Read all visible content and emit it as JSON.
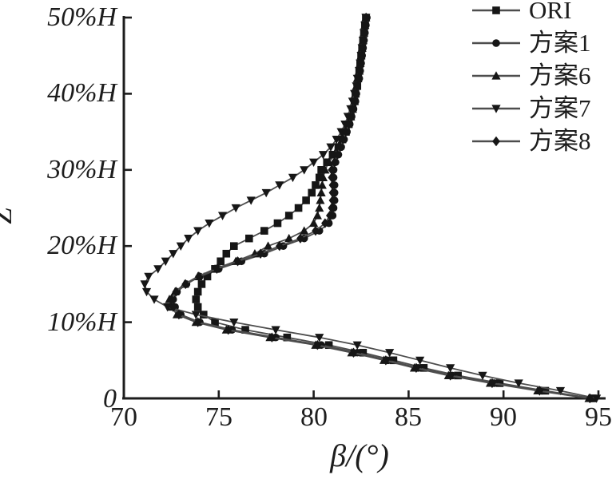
{
  "figure": {
    "background": "#ffffff",
    "ink": "#1d1d1d",
    "marker_color": "#161616",
    "line_color": "#4d4d4d"
  },
  "chart_data": {
    "type": "line",
    "title": "",
    "xlabel": "β/(°)",
    "ylabel": "Z",
    "xlim": [
      70,
      95
    ],
    "x_ticks": [
      70,
      75,
      80,
      85,
      90,
      95
    ],
    "x_tick_labels": [
      "70",
      "75",
      "80",
      "85",
      "90",
      "95"
    ],
    "y_unit": "%H",
    "ylim_percent_H": [
      0,
      50
    ],
    "y_ticks": [
      0,
      10,
      20,
      30,
      40,
      50
    ],
    "y_tick_labels": [
      "0",
      "10%H",
      "20%H",
      "30%H",
      "40%H",
      "50%H"
    ],
    "grid": false,
    "legend_position": "top-right",
    "z_values": [
      0,
      1,
      2,
      3,
      4,
      5,
      6,
      7,
      8,
      9,
      10,
      11,
      12,
      13,
      14,
      15,
      16,
      17,
      18,
      19,
      20,
      21,
      22,
      23,
      24,
      25,
      26,
      27,
      28,
      29,
      30,
      31,
      32,
      33,
      34,
      35,
      36,
      37,
      38,
      39,
      40,
      41,
      42,
      43,
      44,
      45,
      46,
      47,
      48,
      49,
      50
    ],
    "series": [
      {
        "name": "ORI",
        "marker": "square",
        "beta_values": [
          94.7,
          92.2,
          89.8,
          87.6,
          85.8,
          84.2,
          82.6,
          80.8,
          78.6,
          76.4,
          74.8,
          74.2,
          73.9,
          73.8,
          73.9,
          74.1,
          74.4,
          74.8,
          75.1,
          75.4,
          75.8,
          76.6,
          77.4,
          78.1,
          78.7,
          79.2,
          79.6,
          79.9,
          80.1,
          80.3,
          80.4,
          80.7,
          81.0,
          81.3,
          81.5,
          81.7,
          81.85,
          81.95,
          82.05,
          82.15,
          82.2,
          82.3,
          82.35,
          82.4,
          82.45,
          82.5,
          82.55,
          82.6,
          82.65,
          82.7,
          82.75
        ]
      },
      {
        "name": "方案1",
        "marker": "circle",
        "beta_values": [
          94.6,
          92.0,
          89.5,
          87.3,
          85.5,
          83.9,
          82.3,
          80.4,
          78.0,
          75.7,
          74.0,
          73.0,
          72.7,
          72.6,
          72.8,
          73.3,
          74.0,
          75.0,
          76.2,
          77.4,
          78.4,
          79.5,
          80.3,
          80.8,
          81.0,
          81.05,
          81.1,
          81.1,
          81.1,
          81.05,
          81.05,
          81.15,
          81.3,
          81.45,
          81.6,
          81.75,
          81.9,
          82.0,
          82.1,
          82.2,
          82.25,
          82.3,
          82.4,
          82.45,
          82.5,
          82.55,
          82.6,
          82.65,
          82.7,
          82.75,
          82.8
        ]
      },
      {
        "name": "方案6",
        "marker": "triangle-up",
        "beta_values": [
          94.5,
          91.8,
          89.3,
          87.1,
          85.3,
          83.7,
          82.0,
          80.1,
          77.7,
          75.4,
          73.8,
          72.8,
          72.5,
          72.4,
          72.7,
          73.2,
          73.9,
          74.8,
          75.9,
          76.9,
          77.6,
          78.7,
          79.5,
          80.0,
          80.2,
          80.3,
          80.35,
          80.4,
          80.45,
          80.5,
          80.6,
          80.8,
          81.1,
          81.3,
          81.5,
          81.65,
          81.8,
          81.95,
          82.05,
          82.15,
          82.2,
          82.25,
          82.3,
          82.4,
          82.45,
          82.5,
          82.55,
          82.6,
          82.65,
          82.7,
          82.75
        ]
      },
      {
        "name": "方案7",
        "marker": "triangle-down",
        "beta_values": [
          94.9,
          93.0,
          90.8,
          88.9,
          87.2,
          85.6,
          84.0,
          82.3,
          80.3,
          78.0,
          75.8,
          73.8,
          72.3,
          71.6,
          71.2,
          71.1,
          71.3,
          71.8,
          72.2,
          72.6,
          73.0,
          73.4,
          73.9,
          74.5,
          75.2,
          75.9,
          76.7,
          77.5,
          78.2,
          78.9,
          79.5,
          80.0,
          80.5,
          80.9,
          81.2,
          81.45,
          81.65,
          81.8,
          81.95,
          82.05,
          82.15,
          82.25,
          82.3,
          82.4,
          82.45,
          82.5,
          82.55,
          82.6,
          82.65,
          82.7,
          82.75
        ]
      },
      {
        "name": "方案8",
        "marker": "diamond",
        "beta_values": [
          94.55,
          91.9,
          89.4,
          87.2,
          85.4,
          83.8,
          82.1,
          80.2,
          77.8,
          75.5,
          73.9,
          72.9,
          72.6,
          72.5,
          72.75,
          73.25,
          73.95,
          74.9,
          76.0,
          77.2,
          78.2,
          79.3,
          80.1,
          80.6,
          80.85,
          80.95,
          81.0,
          81.0,
          81.0,
          80.95,
          80.95,
          81.1,
          81.25,
          81.4,
          81.55,
          81.7,
          81.85,
          81.95,
          82.05,
          82.15,
          82.2,
          82.28,
          82.35,
          82.42,
          82.48,
          82.52,
          82.58,
          82.62,
          82.66,
          82.71,
          82.76
        ]
      }
    ]
  }
}
